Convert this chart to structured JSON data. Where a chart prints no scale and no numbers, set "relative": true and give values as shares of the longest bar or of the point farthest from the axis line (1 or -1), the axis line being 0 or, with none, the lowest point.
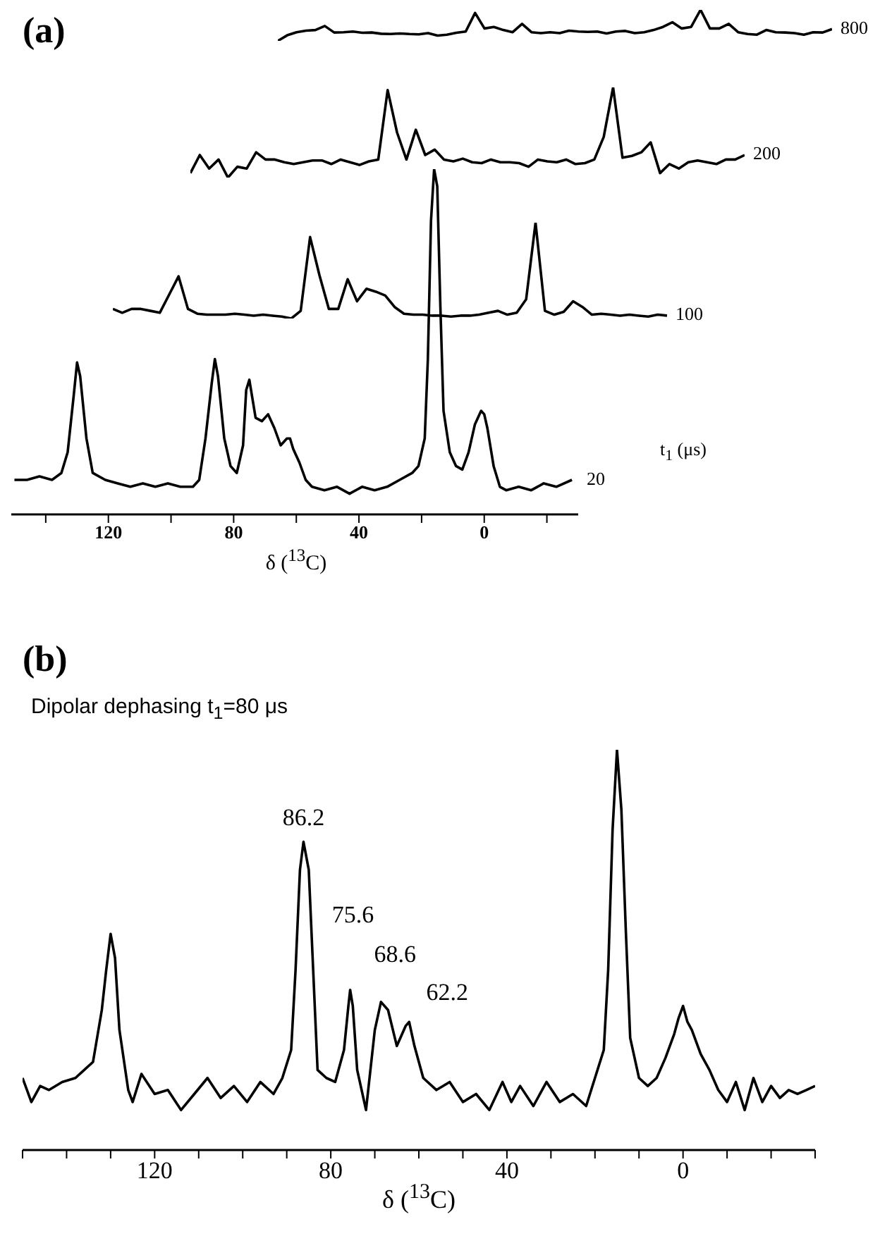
{
  "chart_data": [
    {
      "type": "line",
      "title": "(a)",
      "relative": true,
      "tick_labels": false,
      "categories": [
        null,
        null,
        null,
        null,
        null,
        null,
        null,
        null,
        null,
        null,
        null,
        null,
        null,
        null,
        null,
        null,
        null,
        null,
        null,
        null,
        null,
        null,
        null,
        null,
        null,
        null,
        null,
        null,
        null,
        null,
        null,
        null,
        null,
        null,
        null,
        null,
        null,
        null,
        null,
        null,
        null,
        null,
        null,
        null,
        null,
        null,
        null,
        null,
        null,
        null,
        null,
        null,
        null,
        null,
        null,
        null,
        null,
        null,
        null,
        null
      ],
      "series": [
        {
          "name": "800",
          "color": "#000000",
          "values": [
            0,
            0.18,
            0.28,
            0.33,
            0.35,
            0.48,
            0.27,
            0.28,
            0.3,
            0.26,
            0.27,
            0.23,
            0.22,
            0.24,
            0.22,
            0.21,
            0.25,
            0.17,
            0.2,
            0.26,
            0.3,
            0.9,
            0.4,
            0.45,
            0.35,
            0.28,
            0.55,
            0.28,
            0.25,
            0.28,
            0.25,
            0.33,
            0.3,
            0.29,
            0.3,
            0.24,
            0.3,
            0.32,
            0.25,
            0.28,
            0.35,
            0.45,
            0.6,
            0.4,
            0.45,
            1.0,
            0.4,
            0.4,
            0.55,
            0.28,
            0.22,
            0.2,
            0.35,
            0.28,
            0.27,
            0.25,
            0.2,
            0.28,
            0.27,
            0.38
          ]
        }
      ]
    },
    {
      "type": "line",
      "relative": true,
      "tick_labels": false,
      "categories": [
        null,
        null,
        null,
        null,
        null,
        null,
        null,
        null,
        null,
        null,
        null,
        null,
        null,
        null,
        null,
        null,
        null,
        null,
        null,
        null,
        null,
        null,
        null,
        null,
        null,
        null,
        null,
        null,
        null,
        null,
        null,
        null,
        null,
        null,
        null,
        null,
        null,
        null,
        null,
        null,
        null,
        null,
        null,
        null,
        null,
        null,
        null,
        null,
        null,
        null,
        null,
        null,
        null,
        null,
        null,
        null,
        null,
        null,
        null,
        null
      ],
      "series": [
        {
          "name": "200",
          "color": "#000000",
          "values": [
            0.05,
            0.25,
            0.1,
            0.2,
            0,
            0.12,
            0.1,
            0.28,
            0.2,
            0.2,
            0.17,
            0.15,
            0.17,
            0.19,
            0.19,
            0.15,
            0.2,
            0.17,
            0.14,
            0.18,
            0.2,
            0.97,
            0.5,
            0.2,
            0.53,
            0.25,
            0.31,
            0.2,
            0.18,
            0.21,
            0.17,
            0.16,
            0.2,
            0.17,
            0.17,
            0.16,
            0.12,
            0.2,
            0.18,
            0.17,
            0.2,
            0.15,
            0.16,
            0.2,
            0.45,
            1.0,
            0.22,
            0.24,
            0.28,
            0.39,
            0.05,
            0.15,
            0.1,
            0.17,
            0.19,
            0.17,
            0.15,
            0.2,
            0.2,
            0.25
          ]
        }
      ]
    },
    {
      "type": "line",
      "relative": true,
      "tick_labels": false,
      "categories": [
        null,
        null,
        null,
        null,
        null,
        null,
        null,
        null,
        null,
        null,
        null,
        null,
        null,
        null,
        null,
        null,
        null,
        null,
        null,
        null,
        null,
        null,
        null,
        null,
        null,
        null,
        null,
        null,
        null,
        null,
        null,
        null,
        null,
        null,
        null,
        null,
        null,
        null,
        null,
        null,
        null,
        null,
        null,
        null,
        null,
        null,
        null,
        null,
        null,
        null,
        null,
        null,
        null,
        null,
        null,
        null,
        null,
        null,
        null,
        null
      ],
      "series": [
        {
          "name": "100",
          "color": "#000000",
          "values": [
            0.1,
            0.06,
            0.1,
            0.1,
            0.08,
            0.06,
            0.25,
            0.44,
            0.1,
            0.05,
            0.04,
            0.04,
            0.04,
            0.05,
            0.04,
            0.03,
            0.04,
            0.03,
            0.02,
            0,
            0.08,
            0.85,
            0.45,
            0.1,
            0.1,
            0.41,
            0.18,
            0.31,
            0.28,
            0.24,
            0.12,
            0.05,
            0.04,
            0.04,
            0.03,
            0.03,
            0.02,
            0.03,
            0.03,
            0.04,
            0.06,
            0.08,
            0.04,
            0.06,
            0.2,
            1.0,
            0.08,
            0.04,
            0.07,
            0.18,
            0.12,
            0.04,
            0.05,
            0.04,
            0.03,
            0.04,
            0.03,
            0.02,
            0.04,
            0.03
          ]
        }
      ]
    },
    {
      "type": "line",
      "relative": true,
      "xlabel": "δ ($^{13}$C)",
      "legend_title": "t$_{1}$ (μs)",
      "xlim": [
        151,
        -30
      ],
      "xticks": [
        {
          "value": 140,
          "label": null
        },
        120,
        {
          "value": 100,
          "label": null
        },
        80,
        {
          "value": 60,
          "label": null
        },
        40,
        {
          "value": 20,
          "label": null
        },
        0,
        {
          "value": -20,
          "label": null
        }
      ],
      "x": [
        150,
        146,
        142,
        138,
        135,
        133,
        131,
        130,
        129,
        127,
        125,
        121,
        117,
        113,
        109,
        105,
        101,
        97,
        93,
        91,
        89,
        87,
        86,
        85,
        83,
        81,
        79,
        77,
        76,
        75,
        73,
        71,
        69,
        67,
        65,
        63,
        62,
        61,
        59,
        57,
        55,
        51,
        47,
        43,
        39,
        35,
        31,
        27,
        23,
        21,
        19,
        18,
        17,
        16,
        15,
        14,
        13,
        11,
        9,
        7,
        5,
        3,
        1,
        0,
        -1,
        -3,
        -5,
        -7,
        -11,
        -15,
        -19,
        -23,
        -28
      ],
      "series": [
        {
          "name": "20",
          "color": "#000000",
          "values": [
            0.1,
            0.1,
            0.11,
            0.1,
            0.12,
            0.18,
            0.35,
            0.44,
            0.4,
            0.22,
            0.12,
            0.1,
            0.09,
            0.08,
            0.09,
            0.08,
            0.09,
            0.08,
            0.08,
            0.1,
            0.22,
            0.38,
            0.45,
            0.4,
            0.22,
            0.14,
            0.12,
            0.2,
            0.36,
            0.39,
            0.28,
            0.27,
            0.29,
            0.25,
            0.2,
            0.22,
            0.22,
            0.19,
            0.15,
            0.1,
            0.08,
            0.07,
            0.08,
            0.06,
            0.08,
            0.07,
            0.08,
            0.1,
            0.12,
            0.14,
            0.22,
            0.45,
            0.85,
            1.0,
            0.95,
            0.6,
            0.3,
            0.18,
            0.14,
            0.13,
            0.18,
            0.26,
            0.3,
            0.29,
            0.25,
            0.14,
            0.08,
            0.07,
            0.08,
            0.07,
            0.09,
            0.08,
            0.1
          ]
        }
      ]
    },
    {
      "type": "line",
      "relative": true,
      "title": "(b)",
      "subtitle": "Dipolar dephasing t$_{1}$=80 μs",
      "xlabel": "δ ($^{13}$C)",
      "xlim": [
        150,
        -30
      ],
      "xticks": [
        {
          "value": 150,
          "label": null
        },
        {
          "value": 140,
          "label": null
        },
        {
          "value": 130,
          "label": null
        },
        120,
        {
          "value": 110,
          "label": null
        },
        {
          "value": 100,
          "label": null
        },
        {
          "value": 90,
          "label": null
        },
        80,
        {
          "value": 70,
          "label": null
        },
        {
          "value": 60,
          "label": null
        },
        {
          "value": 50,
          "label": null
        },
        40,
        {
          "value": 30,
          "label": null
        },
        {
          "value": 20,
          "label": null
        },
        {
          "value": 10,
          "label": null
        },
        0,
        {
          "value": -10,
          "label": null
        },
        {
          "value": -20,
          "label": null
        },
        {
          "value": -30,
          "label": null
        }
      ],
      "annotations": [
        {
          "text": "86.2",
          "x": 86.2,
          "y": 0.77
        },
        {
          "text": "75.6",
          "x": 75.6,
          "y": 0.4
        },
        {
          "text": "68.6",
          "x": 68.6,
          "y": 0.37
        },
        {
          "text": "62.2",
          "x": 62.2,
          "y": 0.32
        }
      ],
      "x": [
        150,
        148,
        146,
        144,
        141,
        138,
        136,
        134,
        132,
        131,
        130,
        129,
        128,
        126,
        125,
        123,
        120,
        117,
        114,
        111,
        108,
        105,
        102,
        99,
        96,
        93,
        91,
        89,
        88,
        87,
        86.2,
        85,
        84,
        83,
        81,
        79,
        77,
        76,
        75.6,
        75,
        74,
        72,
        70,
        68.6,
        67,
        65,
        63,
        62.2,
        61,
        59,
        56,
        53,
        50,
        47,
        44,
        41,
        39,
        37,
        34,
        31,
        28,
        25,
        22,
        20,
        18,
        17,
        16,
        15,
        14,
        13,
        12,
        10,
        8,
        6,
        4,
        2,
        1,
        0,
        -1,
        -2,
        -4,
        -6,
        -8,
        -10,
        -12,
        -14,
        -16,
        -18,
        -20,
        -22,
        -24,
        -26,
        -28,
        -30
      ],
      "series": [
        {
          "color": "#000000",
          "values": [
            0.18,
            0.12,
            0.16,
            0.15,
            0.17,
            0.18,
            0.2,
            0.22,
            0.35,
            0.45,
            0.54,
            0.48,
            0.3,
            0.15,
            0.12,
            0.19,
            0.14,
            0.15,
            0.1,
            0.14,
            0.18,
            0.13,
            0.16,
            0.12,
            0.17,
            0.14,
            0.18,
            0.25,
            0.45,
            0.7,
            0.77,
            0.7,
            0.45,
            0.2,
            0.18,
            0.17,
            0.25,
            0.36,
            0.4,
            0.36,
            0.2,
            0.1,
            0.3,
            0.37,
            0.35,
            0.26,
            0.31,
            0.32,
            0.26,
            0.18,
            0.15,
            0.17,
            0.12,
            0.14,
            0.1,
            0.17,
            0.12,
            0.16,
            0.11,
            0.17,
            0.12,
            0.14,
            0.11,
            0.18,
            0.25,
            0.45,
            0.8,
            1.0,
            0.85,
            0.55,
            0.28,
            0.18,
            0.16,
            0.18,
            0.23,
            0.29,
            0.33,
            0.36,
            0.32,
            0.3,
            0.24,
            0.2,
            0.15,
            0.12,
            0.17,
            0.1,
            0.18,
            0.12,
            0.16,
            0.13,
            0.15,
            0.14,
            0.15,
            0.16
          ]
        }
      ]
    }
  ]
}
